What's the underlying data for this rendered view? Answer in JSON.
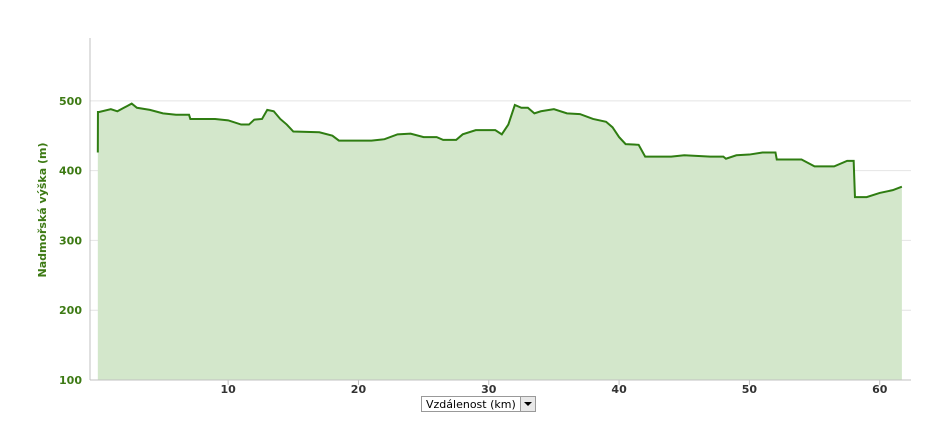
{
  "chart_data": {
    "type": "area",
    "y_label": "Nadmořská výška (m)",
    "x_label": "Vzdálenost (km)",
    "x": [
      0,
      0.01,
      0.1,
      1,
      1.5,
      2,
      2.6,
      3,
      4,
      5,
      6,
      7,
      7.1,
      9,
      10,
      11,
      11.6,
      12,
      12.6,
      13,
      13.5,
      14,
      14.5,
      15,
      17,
      18,
      18.5,
      21,
      22,
      23,
      24,
      25,
      26,
      26.5,
      27.5,
      28,
      29,
      30.5,
      31,
      31.5,
      32,
      32.5,
      33,
      33.5,
      34,
      35,
      36,
      37,
      38,
      39,
      39.5,
      40,
      40.5,
      41.5,
      42,
      44,
      45,
      47,
      48,
      48.2,
      49,
      50,
      51,
      52,
      52.1,
      54,
      55,
      56.5,
      57.5,
      58,
      58.1,
      59,
      60,
      61,
      61.7
    ],
    "values": [
      426,
      484,
      484,
      488,
      485,
      490,
      496,
      490,
      487,
      482,
      480,
      480,
      474,
      474,
      472,
      466,
      466,
      473,
      474,
      487,
      485,
      474,
      466,
      456,
      455,
      450,
      443,
      443,
      445,
      452,
      453,
      448,
      448,
      444,
      444,
      452,
      458,
      458,
      452,
      466,
      494,
      490,
      490,
      482,
      485,
      488,
      482,
      481,
      474,
      470,
      462,
      448,
      438,
      437,
      420,
      420,
      422,
      420,
      420,
      417,
      422,
      423,
      426,
      426,
      416,
      416,
      406,
      406,
      414,
      414,
      362,
      362,
      368,
      372,
      377
    ],
    "color": "#2f7d12",
    "fill": "#d3e7cb",
    "xlim": [
      -0.6,
      62.4
    ],
    "ylim": [
      100,
      590
    ],
    "xticks": [
      10,
      20,
      30,
      40,
      50,
      60
    ],
    "yticks": [
      100,
      200,
      300,
      400,
      500
    ],
    "grid": true
  }
}
